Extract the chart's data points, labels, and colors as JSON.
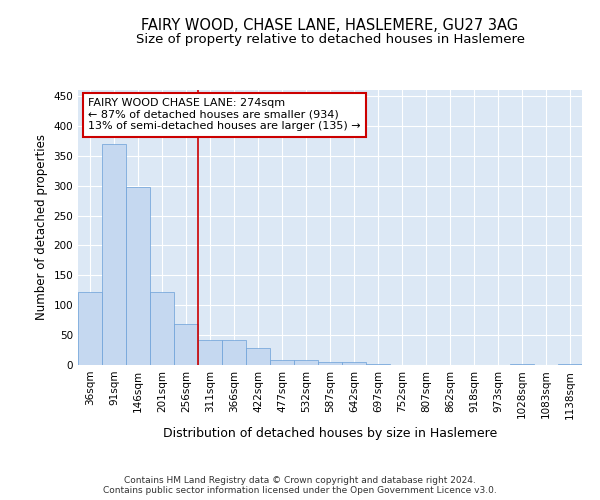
{
  "title": "FAIRY WOOD, CHASE LANE, HASLEMERE, GU27 3AG",
  "subtitle": "Size of property relative to detached houses in Haslemere",
  "xlabel": "Distribution of detached houses by size in Haslemere",
  "ylabel": "Number of detached properties",
  "bar_color": "#c5d8f0",
  "bar_edge_color": "#6a9fd8",
  "background_color": "#dce8f5",
  "vline_color": "#cc0000",
  "annotation_text": "FAIRY WOOD CHASE LANE: 274sqm\n← 87% of detached houses are smaller (934)\n13% of semi-detached houses are larger (135) →",
  "annotation_box_color": "white",
  "annotation_box_edge": "#cc0000",
  "categories": [
    "36sqm",
    "91sqm",
    "146sqm",
    "201sqm",
    "256sqm",
    "311sqm",
    "366sqm",
    "422sqm",
    "477sqm",
    "532sqm",
    "587sqm",
    "642sqm",
    "697sqm",
    "752sqm",
    "807sqm",
    "862sqm",
    "918sqm",
    "973sqm",
    "1028sqm",
    "1083sqm",
    "1138sqm"
  ],
  "values": [
    122,
    370,
    297,
    122,
    68,
    42,
    42,
    28,
    8,
    8,
    5,
    5,
    2,
    0,
    0,
    0,
    0,
    0,
    2,
    0,
    2
  ],
  "vline_bar_index": 5,
  "ylim": [
    0,
    460
  ],
  "yticks": [
    0,
    50,
    100,
    150,
    200,
    250,
    300,
    350,
    400,
    450
  ],
  "footnote": "Contains HM Land Registry data © Crown copyright and database right 2024.\nContains public sector information licensed under the Open Government Licence v3.0.",
  "title_fontsize": 10.5,
  "subtitle_fontsize": 9.5,
  "xlabel_fontsize": 9,
  "ylabel_fontsize": 8.5,
  "tick_fontsize": 7.5,
  "annot_fontsize": 8,
  "footnote_fontsize": 6.5
}
